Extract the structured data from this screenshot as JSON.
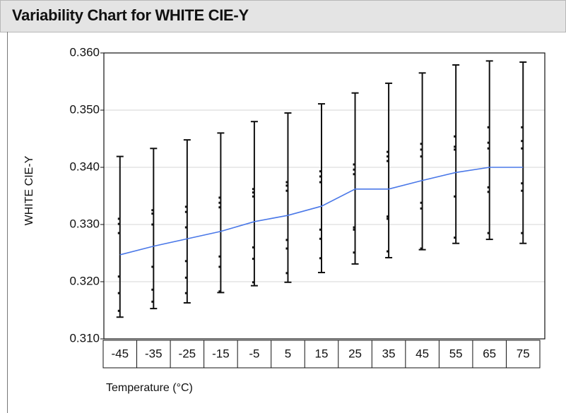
{
  "chart_data": {
    "type": "variability",
    "title": "Variability Chart for WHITE CIE-Y",
    "x_label": "Temperature (°C)",
    "y_label": "WHITE CIE-Y",
    "categories": [
      "-45",
      "-35",
      "-25",
      "-15",
      "-5",
      "5",
      "15",
      "25",
      "35",
      "45",
      "55",
      "65",
      "75"
    ],
    "min": [
      0.3138,
      0.3153,
      0.3163,
      0.3181,
      0.3193,
      0.3199,
      0.3216,
      0.3231,
      0.3242,
      0.3256,
      0.3267,
      0.3274,
      0.3267
    ],
    "max": [
      0.3419,
      0.3433,
      0.3448,
      0.346,
      0.348,
      0.3495,
      0.3511,
      0.353,
      0.3547,
      0.3565,
      0.3579,
      0.3586,
      0.3584
    ],
    "mean": [
      0.3247,
      0.3262,
      0.3275,
      0.3288,
      0.3305,
      0.3316,
      0.3332,
      0.3362,
      0.3362,
      0.3377,
      0.3391,
      0.34,
      0.34
    ],
    "points": [
      [
        0.331,
        0.3301,
        0.3285,
        0.3209,
        0.318,
        0.3149
      ],
      [
        0.3325,
        0.3319,
        0.33,
        0.3226,
        0.3186,
        0.3165
      ],
      [
        0.3331,
        0.3322,
        0.3295,
        0.3236,
        0.3207,
        0.318
      ],
      [
        0.3347,
        0.3338,
        0.333,
        0.3244,
        0.3226,
        0.3183
      ],
      [
        0.3362,
        0.3356,
        0.3349,
        0.326,
        0.324,
        0.3199
      ],
      [
        0.3374,
        0.3368,
        0.3359,
        0.3273,
        0.3258,
        0.3215
      ],
      [
        0.3393,
        0.3384,
        0.3374,
        0.3291,
        0.3275,
        0.3241
      ],
      [
        0.3405,
        0.3396,
        0.3388,
        0.3295,
        0.3291,
        0.3251
      ],
      [
        0.3427,
        0.3419,
        0.3411,
        0.3314,
        0.331,
        0.3253
      ],
      [
        0.3441,
        0.3431,
        0.3419,
        0.3338,
        0.3328,
        0.3258
      ],
      [
        0.3454,
        0.3436,
        0.3431,
        0.3349,
        0.3277
      ],
      [
        0.347,
        0.3443,
        0.3433,
        0.3365,
        0.3357,
        0.3285
      ],
      [
        0.347,
        0.3446,
        0.3433,
        0.3372,
        0.3359,
        0.3285
      ]
    ],
    "mean_color": "#4a78e8",
    "range_color": "#111111",
    "ylim": [
      0.31,
      0.36
    ],
    "yticks": [
      {
        "value": 0.31,
        "label": "0.310"
      },
      {
        "value": 0.32,
        "label": "0.320"
      },
      {
        "value": 0.33,
        "label": "0.330"
      },
      {
        "value": 0.34,
        "label": "0.340"
      },
      {
        "value": 0.35,
        "label": "0.350"
      },
      {
        "value": 0.36,
        "label": "0.360"
      }
    ],
    "grid": true
  }
}
